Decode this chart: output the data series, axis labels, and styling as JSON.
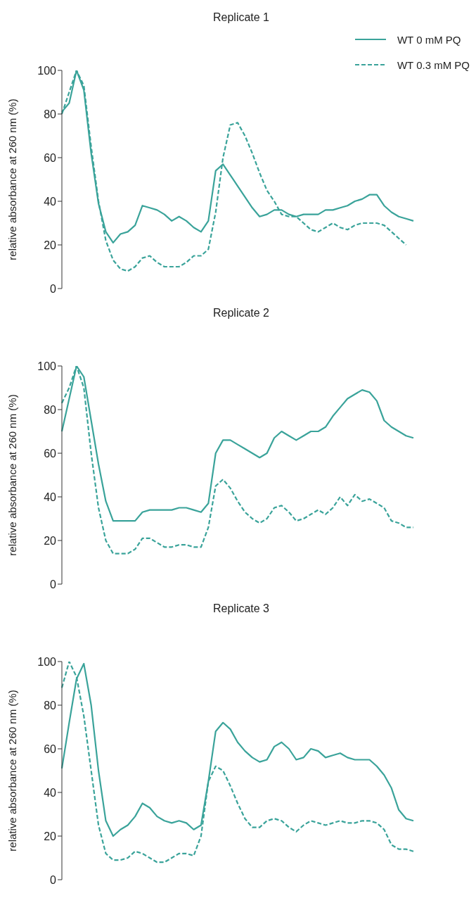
{
  "chart_data": [
    {
      "type": "line",
      "title": "Replicate 1",
      "ylabel": "relative absorbance at 260 nm (%)",
      "categories": [
        null,
        null,
        null,
        null,
        null,
        null,
        null,
        null,
        null,
        null,
        null,
        null,
        null,
        null,
        null,
        null,
        null,
        null,
        null,
        null,
        null,
        null,
        null,
        null,
        null,
        null,
        null,
        null,
        null,
        null,
        null,
        null,
        null,
        null,
        null,
        null,
        null,
        null,
        null,
        null,
        null,
        null,
        null,
        null,
        null,
        null,
        null,
        null,
        null
      ],
      "ylim": [
        0,
        100
      ],
      "yticks": [
        0,
        20,
        40,
        60,
        80,
        100
      ],
      "tick_labels": "y",
      "legend": "top right",
      "series": [
        {
          "name": "WT 0 mM PQ",
          "color": "#3aa39a",
          "line_style": "solid",
          "values": [
            81,
            85,
            100,
            91,
            62,
            39,
            26,
            21,
            25,
            26,
            29,
            38,
            37,
            36,
            34,
            31,
            33,
            31,
            28,
            26,
            31,
            54,
            57,
            52,
            47,
            42,
            37,
            33,
            34,
            36,
            36,
            34,
            33,
            34,
            34,
            34,
            36,
            36,
            37,
            38,
            40,
            41,
            43,
            43,
            38,
            35,
            33,
            32,
            31
          ]
        },
        {
          "name": "WT 0.3 mM PQ",
          "color": "#3aa39a",
          "line_style": "dashed",
          "values": [
            80,
            90,
            100,
            93,
            65,
            40,
            22,
            13,
            9,
            8,
            10,
            14,
            15,
            12,
            10,
            10,
            10,
            12,
            15,
            15,
            18,
            35,
            60,
            75,
            76,
            70,
            62,
            53,
            45,
            40,
            34,
            33,
            33,
            30,
            27,
            26,
            28,
            30,
            28,
            27,
            29,
            30,
            30,
            30,
            29,
            26,
            23,
            20,
            null
          ]
        }
      ]
    },
    {
      "type": "line",
      "title": "Replicate 2",
      "ylabel": "relative absorbance at 260 nm (%)",
      "categories": [
        null,
        null,
        null,
        null,
        null,
        null,
        null,
        null,
        null,
        null,
        null,
        null,
        null,
        null,
        null,
        null,
        null,
        null,
        null,
        null,
        null,
        null,
        null,
        null,
        null,
        null,
        null,
        null,
        null,
        null,
        null,
        null,
        null,
        null,
        null,
        null,
        null,
        null,
        null,
        null,
        null,
        null,
        null,
        null,
        null,
        null,
        null,
        null,
        null
      ],
      "ylim": [
        0,
        100
      ],
      "yticks": [
        0,
        20,
        40,
        60,
        80,
        100
      ],
      "tick_labels": "y",
      "series": [
        {
          "color": "#3aa39a",
          "line_style": "solid",
          "values": [
            70,
            85,
            100,
            95,
            75,
            55,
            38,
            29,
            29,
            29,
            29,
            33,
            34,
            34,
            34,
            34,
            35,
            35,
            34,
            33,
            37,
            60,
            66,
            66,
            64,
            62,
            60,
            58,
            60,
            67,
            70,
            68,
            66,
            68,
            70,
            70,
            72,
            77,
            81,
            85,
            87,
            89,
            88,
            84,
            75,
            72,
            70,
            68,
            67
          ]
        },
        {
          "color": "#3aa39a",
          "line_style": "dashed",
          "values": [
            83,
            90,
            100,
            90,
            60,
            35,
            20,
            14,
            14,
            14,
            16,
            21,
            21,
            19,
            17,
            17,
            18,
            18,
            17,
            17,
            26,
            45,
            48,
            44,
            38,
            33,
            30,
            28,
            30,
            35,
            36,
            33,
            29,
            30,
            32,
            34,
            32,
            35,
            40,
            36,
            41,
            38,
            39,
            37,
            35,
            29,
            28,
            26,
            26
          ]
        }
      ]
    },
    {
      "type": "line",
      "title": "Replicate 3",
      "ylabel": "relative absorbance at 260 nm (%)",
      "categories": [
        null,
        null,
        null,
        null,
        null,
        null,
        null,
        null,
        null,
        null,
        null,
        null,
        null,
        null,
        null,
        null,
        null,
        null,
        null,
        null,
        null,
        null,
        null,
        null,
        null,
        null,
        null,
        null,
        null,
        null,
        null,
        null,
        null,
        null,
        null,
        null,
        null,
        null,
        null,
        null,
        null,
        null,
        null,
        null,
        null,
        null,
        null,
        null,
        null
      ],
      "ylim": [
        0,
        100
      ],
      "yticks": [
        0,
        20,
        40,
        60,
        80,
        100
      ],
      "tick_labels": "y",
      "series": [
        {
          "color": "#3aa39a",
          "line_style": "solid",
          "values": [
            51,
            72,
            92,
            99,
            80,
            50,
            27,
            20,
            23,
            25,
            29,
            35,
            33,
            29,
            27,
            26,
            27,
            26,
            23,
            25,
            45,
            68,
            72,
            69,
            63,
            59,
            56,
            54,
            55,
            61,
            63,
            60,
            55,
            56,
            60,
            59,
            56,
            57,
            58,
            56,
            55,
            55,
            55,
            52,
            48,
            42,
            32,
            28,
            27
          ]
        },
        {
          "color": "#3aa39a",
          "line_style": "dashed",
          "values": [
            88,
            100,
            93,
            75,
            50,
            25,
            12,
            9,
            9,
            10,
            13,
            12,
            10,
            8,
            8,
            10,
            12,
            12,
            11,
            20,
            45,
            52,
            50,
            43,
            35,
            28,
            24,
            24,
            27,
            28,
            27,
            24,
            22,
            25,
            27,
            26,
            25,
            26,
            27,
            26,
            26,
            27,
            27,
            26,
            23,
            16,
            14,
            14,
            13
          ]
        }
      ]
    }
  ]
}
